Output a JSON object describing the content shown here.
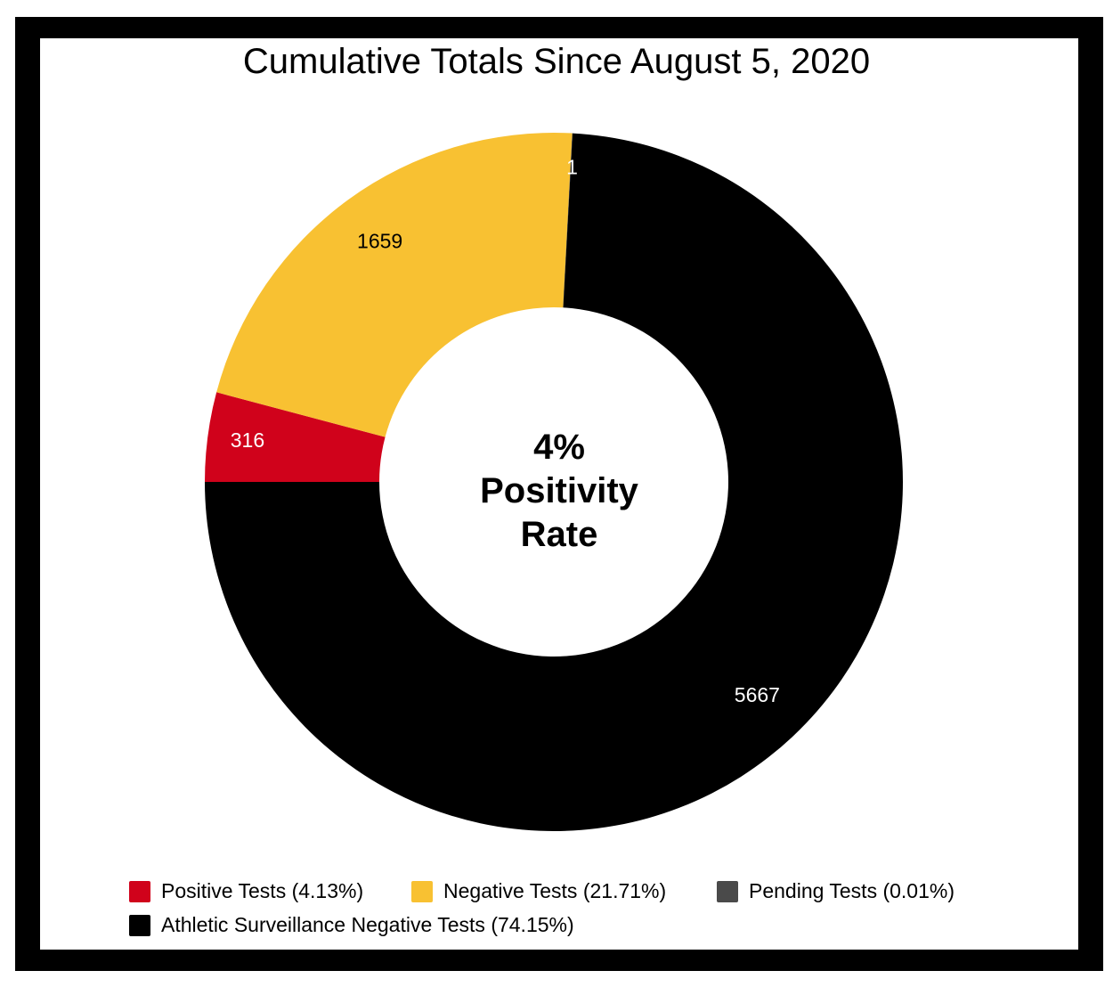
{
  "chart_data": {
    "type": "pie",
    "donut": true,
    "title": "Cumulative Totals Since August 5, 2020",
    "center_text": [
      "4%",
      "Positivity",
      "Rate"
    ],
    "slices": [
      {
        "label": "Positive Tests (4.13%)",
        "value": 316,
        "percent": 4.13,
        "color": "#d0021b",
        "data_label": "316",
        "label_color": "#ffffff"
      },
      {
        "label": "Negative Tests (21.71%)",
        "value": 1659,
        "percent": 21.71,
        "color": "#f8c132",
        "data_label": "1659",
        "label_color": "#000000"
      },
      {
        "label": "Pending Tests (0.01%)",
        "value": 1,
        "percent": 0.01,
        "color": "#4a4a4a",
        "data_label": "1",
        "label_color": "#ffffff"
      },
      {
        "label": "Athletic Surveillance Negative Tests (74.15%)",
        "value": 5667,
        "percent": 74.15,
        "color": "#000000",
        "data_label": "5667",
        "label_color": "#ffffff"
      }
    ],
    "legend_position": "bottom"
  }
}
